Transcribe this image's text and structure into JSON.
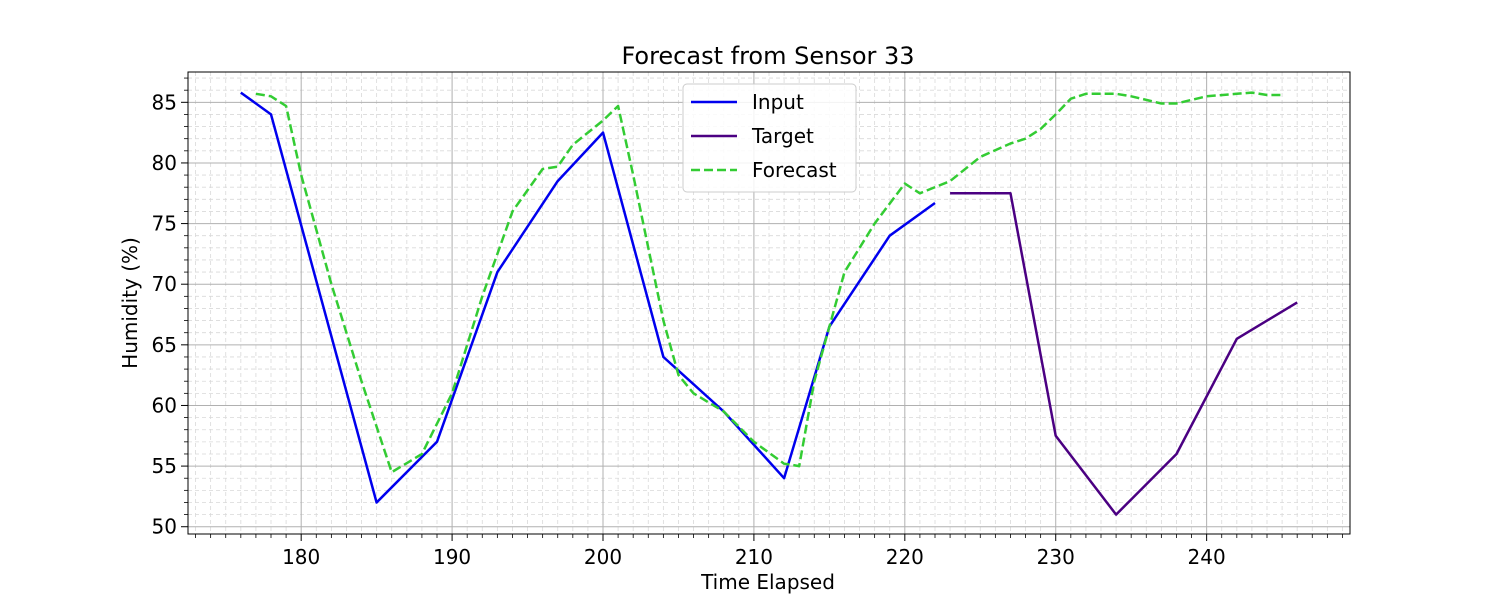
{
  "chart_data": {
    "type": "line",
    "title": "Forecast from Sensor 33",
    "xlabel": "Time Elapsed",
    "ylabel": "Humidity (%)",
    "xlim": [
      172.5,
      249.5
    ],
    "ylim": [
      49.4,
      87.5
    ],
    "xticks": [
      180,
      190,
      200,
      210,
      220,
      230,
      240
    ],
    "yticks": [
      50,
      55,
      60,
      65,
      70,
      75,
      80,
      85
    ],
    "x_minor_step": 1,
    "y_minor_step": 1,
    "grid": true,
    "legend_position": "top-center",
    "series": [
      {
        "name": "Input",
        "color": "#0000ee",
        "style": "solid",
        "points": [
          [
            176,
            85.8
          ],
          [
            178,
            84.0
          ],
          [
            185,
            52.0
          ],
          [
            189,
            57.0
          ],
          [
            193,
            71.0
          ],
          [
            197,
            78.5
          ],
          [
            200,
            82.5
          ],
          [
            204,
            64.0
          ],
          [
            208,
            59.5
          ],
          [
            212,
            54.0
          ],
          [
            215,
            66.5
          ],
          [
            219,
            74.0
          ],
          [
            222,
            76.7
          ]
        ]
      },
      {
        "name": "Target",
        "color": "#4b0082",
        "style": "solid",
        "points": [
          [
            223,
            77.5
          ],
          [
            227,
            77.5
          ],
          [
            230,
            57.5
          ],
          [
            234,
            51.0
          ],
          [
            238,
            56.0
          ],
          [
            242,
            65.5
          ],
          [
            246,
            68.5
          ]
        ]
      },
      {
        "name": "Forecast",
        "color": "#33cc33",
        "style": "dashed",
        "points": [
          [
            177,
            85.7
          ],
          [
            178,
            85.5
          ],
          [
            179,
            84.7
          ],
          [
            180,
            79.0
          ],
          [
            182,
            70.0
          ],
          [
            184,
            62.0
          ],
          [
            186,
            54.5
          ],
          [
            188,
            56.0
          ],
          [
            190,
            61.0
          ],
          [
            192,
            69.0
          ],
          [
            194,
            76.0
          ],
          [
            196,
            79.5
          ],
          [
            197,
            79.7
          ],
          [
            198,
            81.5
          ],
          [
            200,
            83.5
          ],
          [
            201,
            84.7
          ],
          [
            202,
            79.0
          ],
          [
            204,
            67.0
          ],
          [
            205,
            62.5
          ],
          [
            206,
            61.0
          ],
          [
            208,
            59.5
          ],
          [
            210,
            57.0
          ],
          [
            212,
            55.2
          ],
          [
            213,
            55.0
          ],
          [
            214,
            62.0
          ],
          [
            216,
            71.0
          ],
          [
            218,
            75.0
          ],
          [
            220,
            78.3
          ],
          [
            221,
            77.5
          ],
          [
            223,
            78.5
          ],
          [
            225,
            80.5
          ],
          [
            227,
            81.6
          ],
          [
            228,
            82.0
          ],
          [
            229,
            82.8
          ],
          [
            230,
            84.0
          ],
          [
            231,
            85.3
          ],
          [
            232,
            85.7
          ],
          [
            234,
            85.7
          ],
          [
            235,
            85.5
          ],
          [
            237,
            84.9
          ],
          [
            238,
            84.9
          ],
          [
            240,
            85.5
          ],
          [
            242,
            85.7
          ],
          [
            243,
            85.8
          ],
          [
            244,
            85.6
          ],
          [
            245,
            85.6
          ]
        ]
      }
    ]
  }
}
